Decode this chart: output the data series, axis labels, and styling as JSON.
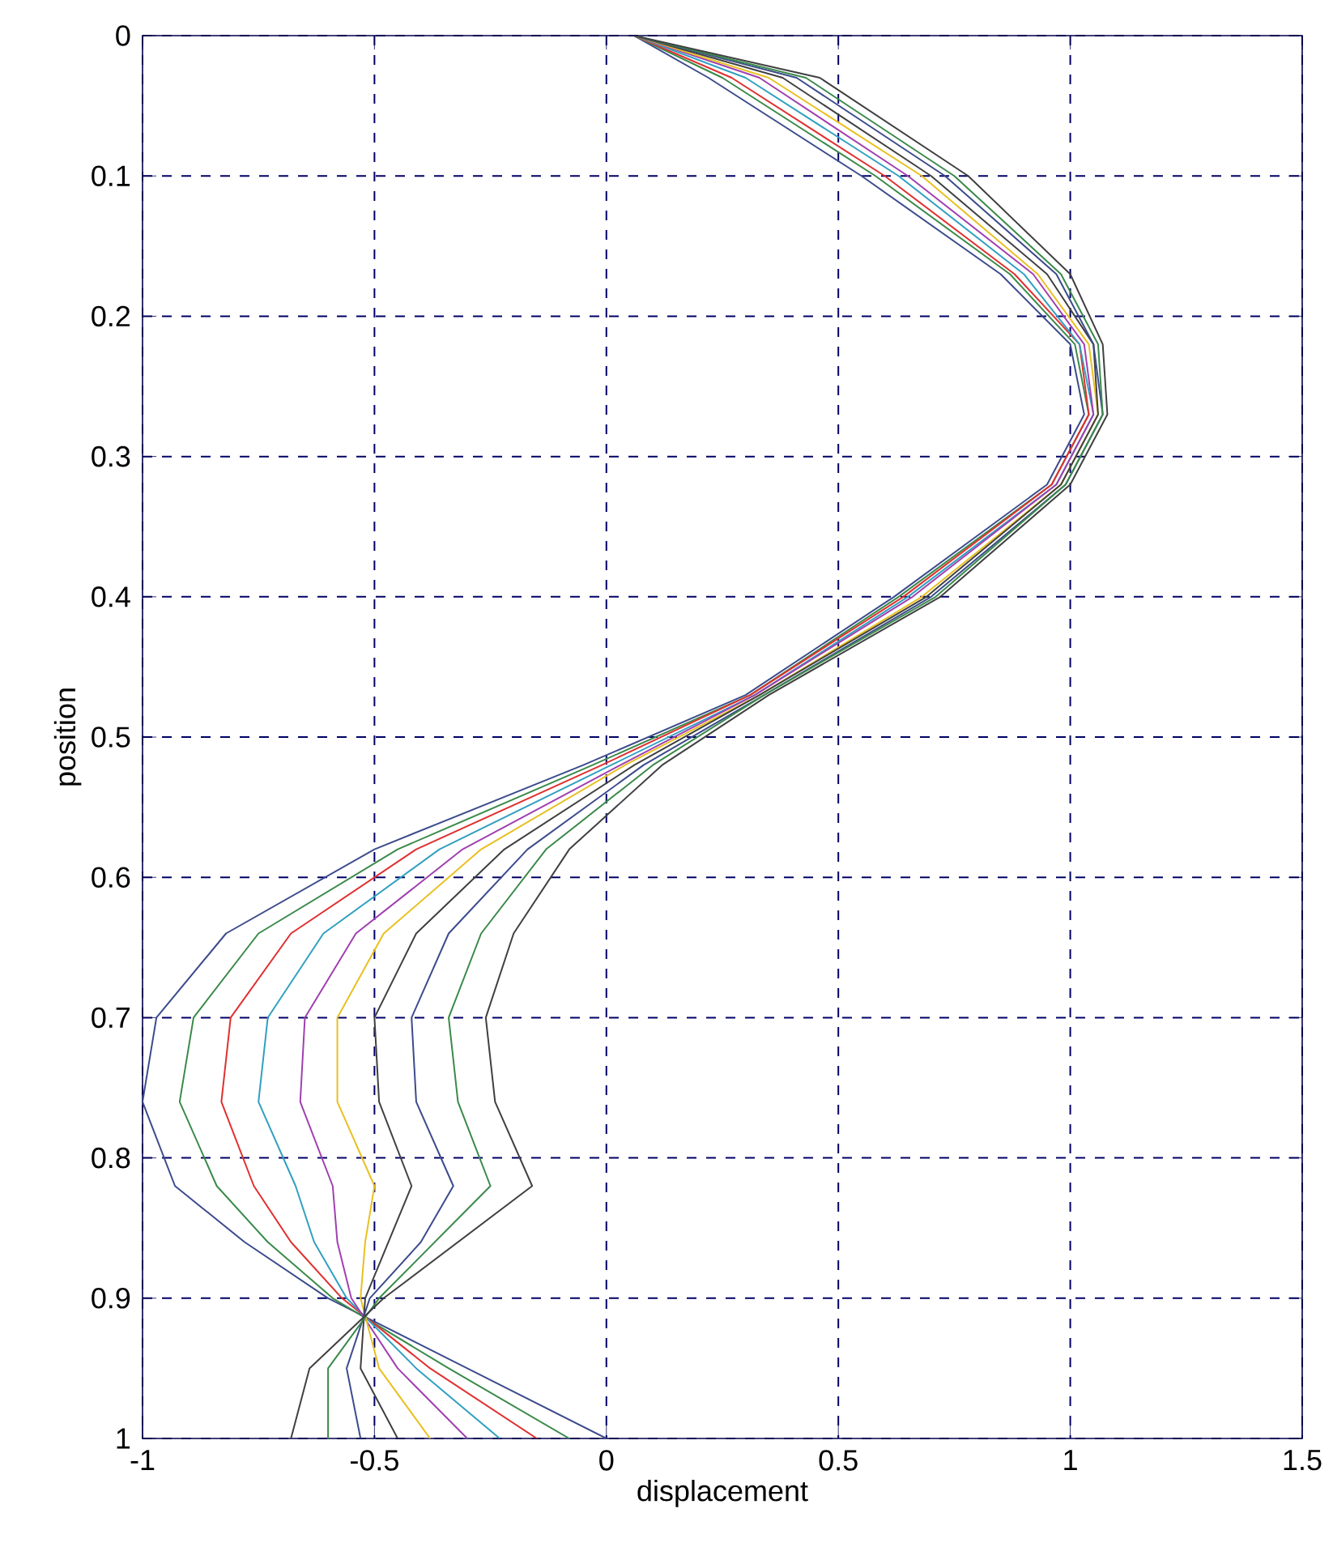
{
  "chart_data": {
    "type": "line",
    "xlabel": "displacement",
    "ylabel": "position",
    "xlim": [
      -1,
      1.5
    ],
    "ylim": [
      1,
      0
    ],
    "xticks": [
      -1,
      -0.5,
      0,
      0.5,
      1,
      1.5
    ],
    "yticks": [
      0,
      0.1,
      0.2,
      0.3,
      0.4,
      0.5,
      0.6,
      0.7,
      0.8,
      0.9,
      1
    ],
    "grid": true,
    "marker": "none",
    "line_style": "solid",
    "series": [
      {
        "color": "#3c4b8c",
        "x": [
          0.06,
          0.22,
          0.55,
          0.85,
          1.0,
          1.03,
          0.95,
          0.62,
          0.3,
          -0.05,
          -0.5,
          -0.82,
          -0.97,
          -1.0,
          -0.93,
          -0.78,
          -0.6,
          -0.3,
          0
        ],
        "values": [
          0,
          0.03,
          0.1,
          0.17,
          0.22,
          0.27,
          0.32,
          0.4,
          0.47,
          0.52,
          0.58,
          0.64,
          0.7,
          0.76,
          0.82,
          0.86,
          0.9,
          0.95,
          1
        ]
      },
      {
        "color": "#3a8a4a",
        "x": [
          0.06,
          0.25,
          0.58,
          0.87,
          1.01,
          1.04,
          0.96,
          0.63,
          0.31,
          -0.03,
          -0.45,
          -0.75,
          -0.89,
          -0.92,
          -0.84,
          -0.73,
          -0.59,
          -0.34,
          -0.08
        ],
        "values": [
          0,
          0.03,
          0.1,
          0.17,
          0.22,
          0.27,
          0.32,
          0.4,
          0.47,
          0.52,
          0.58,
          0.64,
          0.7,
          0.76,
          0.82,
          0.86,
          0.9,
          0.95,
          1
        ]
      },
      {
        "color": "#e03030",
        "x": [
          0.06,
          0.27,
          0.6,
          0.88,
          1.02,
          1.04,
          0.96,
          0.64,
          0.31,
          -0.01,
          -0.41,
          -0.68,
          -0.81,
          -0.83,
          -0.76,
          -0.68,
          -0.57,
          -0.38,
          -0.15
        ],
        "values": [
          0,
          0.03,
          0.1,
          0.17,
          0.22,
          0.27,
          0.32,
          0.4,
          0.47,
          0.52,
          0.58,
          0.64,
          0.7,
          0.76,
          0.82,
          0.86,
          0.9,
          0.95,
          1
        ]
      },
      {
        "color": "#30a0c0",
        "x": [
          0.06,
          0.3,
          0.63,
          0.9,
          1.02,
          1.05,
          0.97,
          0.65,
          0.32,
          0.01,
          -0.36,
          -0.61,
          -0.73,
          -0.75,
          -0.67,
          -0.63,
          -0.56,
          -0.41,
          -0.23
        ],
        "values": [
          0,
          0.03,
          0.1,
          0.17,
          0.22,
          0.27,
          0.32,
          0.4,
          0.47,
          0.52,
          0.58,
          0.64,
          0.7,
          0.76,
          0.82,
          0.86,
          0.9,
          0.95,
          1
        ]
      },
      {
        "color": "#a040b0",
        "x": [
          0.06,
          0.33,
          0.65,
          0.92,
          1.03,
          1.05,
          0.97,
          0.66,
          0.32,
          0.03,
          -0.31,
          -0.54,
          -0.65,
          -0.66,
          -0.59,
          -0.58,
          -0.55,
          -0.45,
          -0.3
        ],
        "values": [
          0,
          0.03,
          0.1,
          0.17,
          0.22,
          0.27,
          0.32,
          0.4,
          0.47,
          0.52,
          0.58,
          0.64,
          0.7,
          0.76,
          0.82,
          0.86,
          0.9,
          0.95,
          1
        ]
      },
      {
        "color": "#e8c020",
        "x": [
          0.06,
          0.35,
          0.68,
          0.93,
          1.04,
          1.06,
          0.98,
          0.68,
          0.33,
          0.04,
          -0.27,
          -0.48,
          -0.58,
          -0.58,
          -0.5,
          -0.52,
          -0.53,
          -0.49,
          -0.38
        ],
        "values": [
          0,
          0.03,
          0.1,
          0.17,
          0.22,
          0.27,
          0.32,
          0.4,
          0.47,
          0.52,
          0.58,
          0.64,
          0.7,
          0.76,
          0.82,
          0.86,
          0.9,
          0.95,
          1
        ]
      },
      {
        "color": "#404040",
        "x": [
          0.06,
          0.38,
          0.7,
          0.95,
          1.05,
          1.06,
          0.98,
          0.69,
          0.33,
          0.06,
          -0.22,
          -0.41,
          -0.5,
          -0.49,
          -0.42,
          -0.47,
          -0.52,
          -0.53,
          -0.45
        ],
        "values": [
          0,
          0.03,
          0.1,
          0.17,
          0.22,
          0.27,
          0.32,
          0.4,
          0.47,
          0.52,
          0.58,
          0.64,
          0.7,
          0.76,
          0.82,
          0.86,
          0.9,
          0.95,
          1
        ]
      },
      {
        "color": "#3c4b8c",
        "x": [
          0.06,
          0.41,
          0.73,
          0.97,
          1.05,
          1.07,
          0.99,
          0.7,
          0.34,
          0.08,
          -0.17,
          -0.34,
          -0.42,
          -0.41,
          -0.33,
          -0.4,
          -0.51,
          -0.56,
          -0.53
        ],
        "values": [
          0,
          0.03,
          0.1,
          0.17,
          0.22,
          0.27,
          0.32,
          0.4,
          0.47,
          0.52,
          0.58,
          0.64,
          0.7,
          0.76,
          0.82,
          0.86,
          0.9,
          0.95,
          1
        ]
      },
      {
        "color": "#3a8a4a",
        "x": [
          0.06,
          0.43,
          0.75,
          0.98,
          1.06,
          1.07,
          0.99,
          0.71,
          0.34,
          0.1,
          -0.13,
          -0.27,
          -0.34,
          -0.32,
          -0.25,
          -0.37,
          -0.49,
          -0.6,
          -0.6
        ],
        "values": [
          0,
          0.03,
          0.1,
          0.17,
          0.22,
          0.27,
          0.32,
          0.4,
          0.47,
          0.52,
          0.58,
          0.64,
          0.7,
          0.76,
          0.82,
          0.86,
          0.9,
          0.95,
          1
        ]
      },
      {
        "color": "#404040",
        "x": [
          0.06,
          0.46,
          0.78,
          1.0,
          1.07,
          1.08,
          1.0,
          0.72,
          0.35,
          0.12,
          -0.08,
          -0.2,
          -0.26,
          -0.24,
          -0.16,
          -0.32,
          -0.48,
          -0.64,
          -0.68
        ],
        "values": [
          0,
          0.03,
          0.1,
          0.17,
          0.22,
          0.27,
          0.32,
          0.4,
          0.47,
          0.52,
          0.58,
          0.64,
          0.7,
          0.76,
          0.82,
          0.86,
          0.9,
          0.95,
          1
        ]
      }
    ]
  }
}
